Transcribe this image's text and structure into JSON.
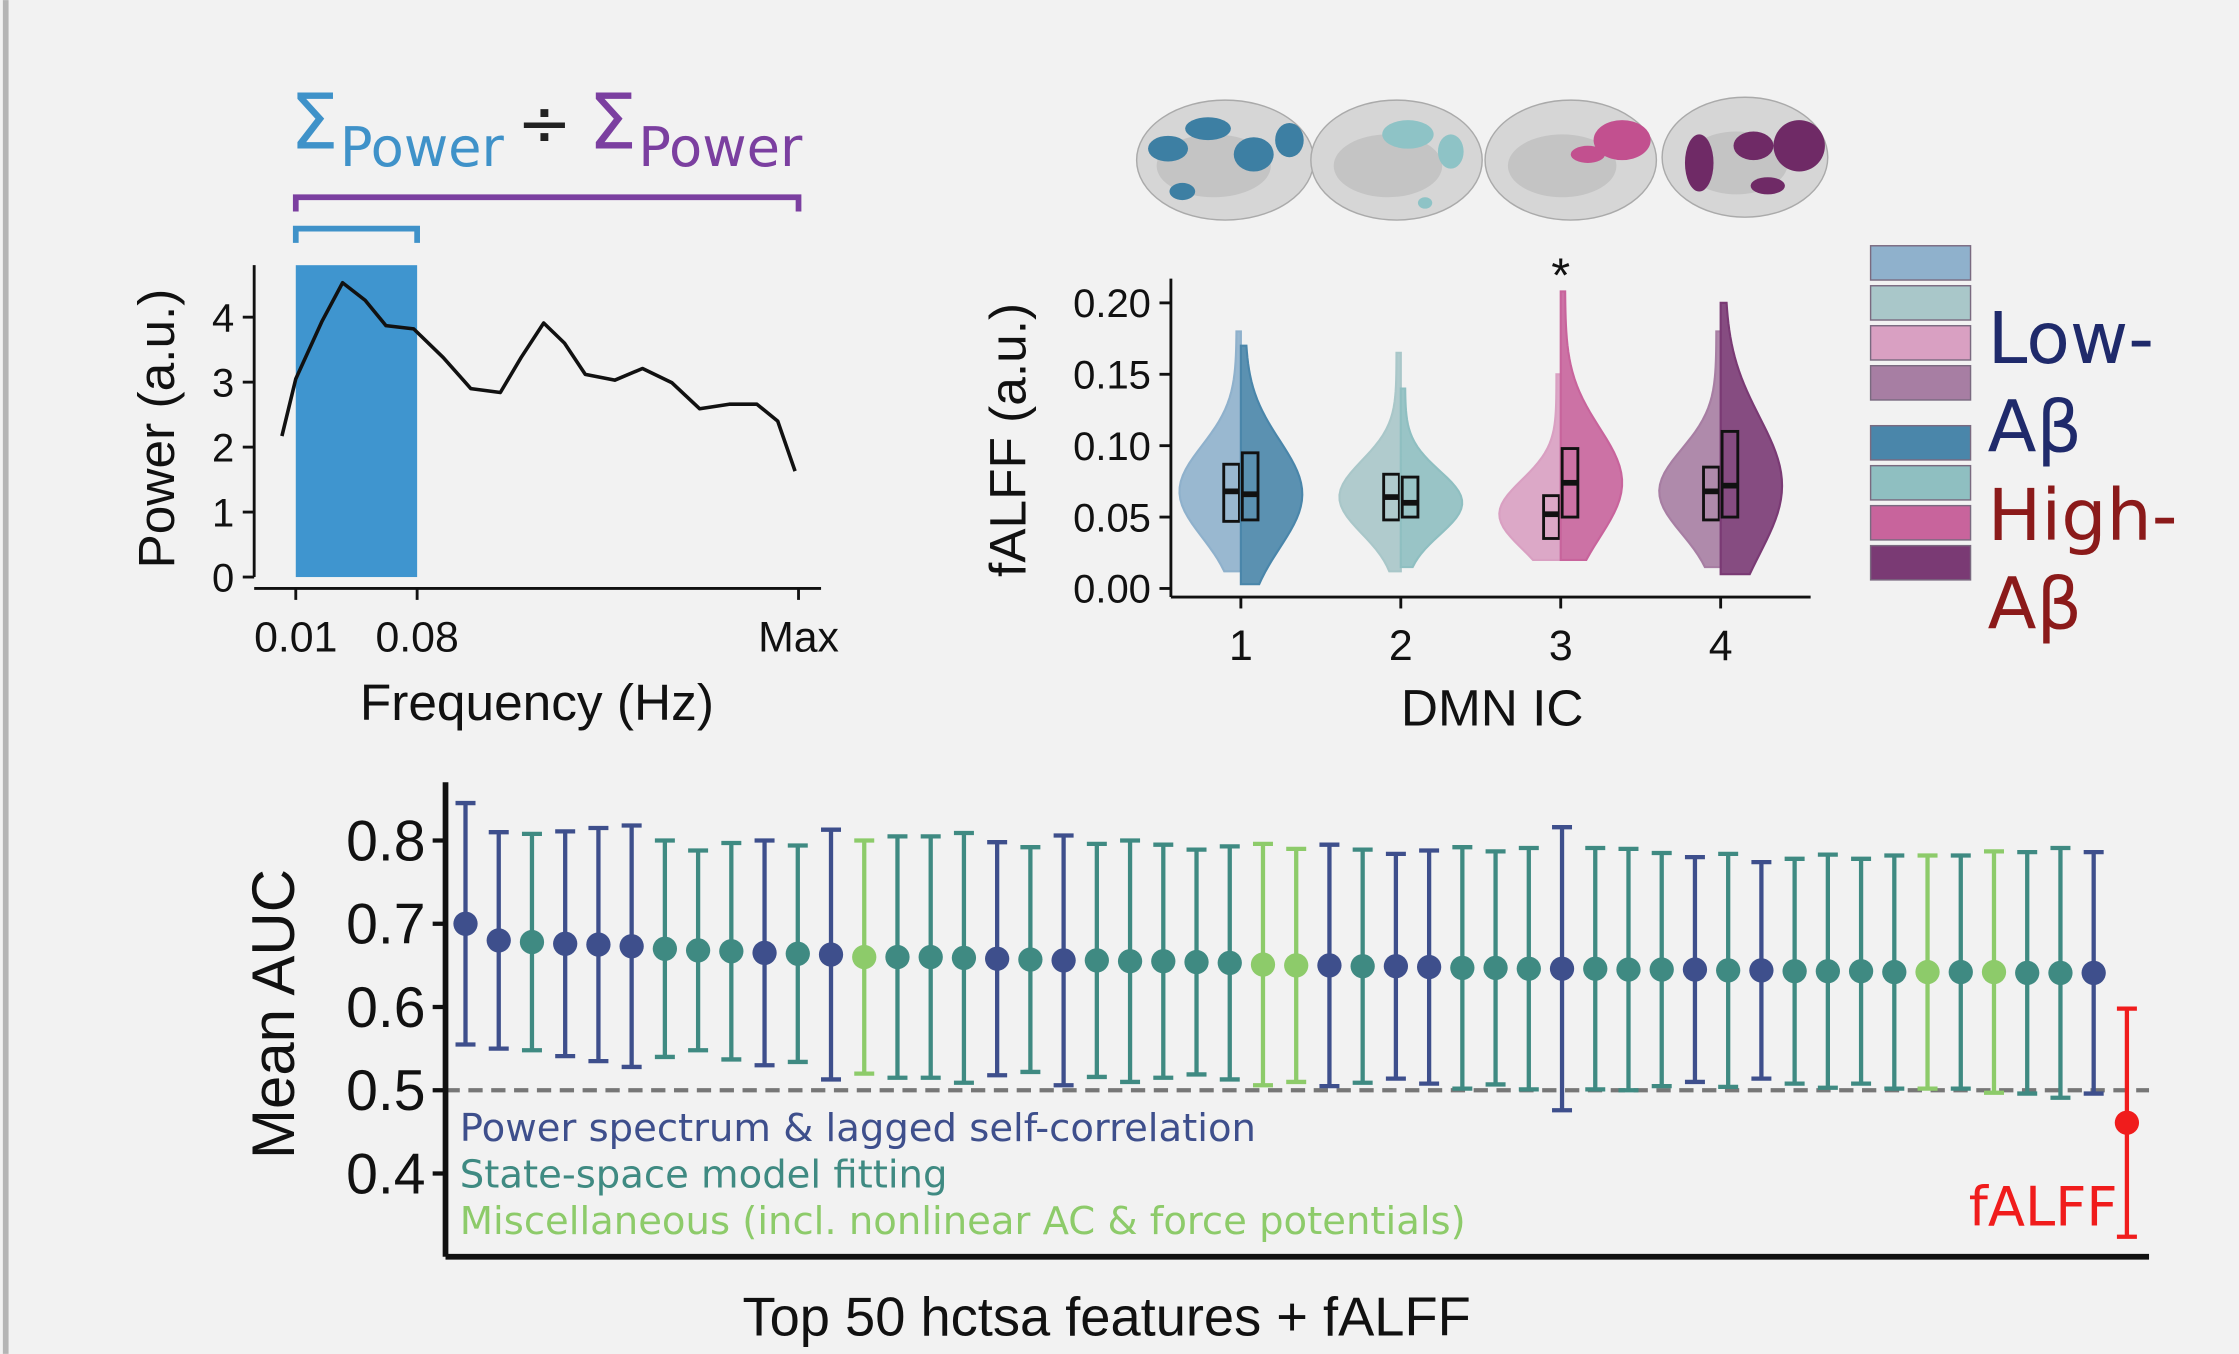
{
  "chart_data": [
    {
      "type": "line",
      "numerator_symbol": "Σ",
      "numerator_sub": "Power",
      "divide": "÷",
      "denominator_symbol": "Σ",
      "denominator_sub": "Power",
      "xlabel": "Frequency (Hz)",
      "ylabel": "Power (a.u.)",
      "xlim": [
        -0.014,
        0.313
      ],
      "xticks": [
        0.01,
        0.08,
        {
          "value": 0.3,
          "label": "Max"
        }
      ],
      "ylim": [
        0,
        4.8
      ],
      "yticks": [
        0,
        1,
        2,
        3,
        4
      ],
      "band": [
        0.01,
        0.08
      ],
      "band_color": "#3f95cf",
      "bracket_colors": [
        "#3f92c9",
        "#7b3fa0"
      ],
      "color": "#111111",
      "x": [
        0.002,
        0.01,
        0.025,
        0.037,
        0.05,
        0.062,
        0.078,
        0.095,
        0.111,
        0.128,
        0.14,
        0.153,
        0.165,
        0.177,
        0.194,
        0.21,
        0.227,
        0.243,
        0.26,
        0.276,
        0.288,
        0.298
      ],
      "values": [
        2.17,
        3.05,
        3.93,
        4.53,
        4.26,
        3.87,
        3.82,
        3.38,
        2.9,
        2.84,
        3.38,
        3.91,
        3.6,
        3.12,
        3.03,
        3.21,
        2.99,
        2.59,
        2.66,
        2.66,
        2.4,
        1.63
      ]
    },
    {
      "type": "violin",
      "xlabel": "DMN IC",
      "ylabel": "fALFF (a.u.)",
      "categories": [
        "1",
        "2",
        "3",
        "4"
      ],
      "ylim": [
        0,
        0.217
      ],
      "yticks": [
        {
          "value": 0,
          "label": "0.00"
        },
        {
          "value": 0.05,
          "label": "0.05"
        },
        {
          "value": 0.1,
          "label": "0.10"
        },
        {
          "value": 0.15,
          "label": "0.15"
        },
        {
          "value": 0.2,
          "label": "0.20"
        }
      ],
      "annotations": [
        {
          "text": "*",
          "category": "3"
        }
      ],
      "series": [
        {
          "name": "Low-Aβ",
          "label_color": "#1f2a6b",
          "colors": [
            "#8fb1cc",
            "#a9c7c9",
            "#d9a0c2",
            "#a77ea3"
          ],
          "min": [
            0.012,
            0.012,
            0.02,
            0.015
          ],
          "q1": [
            0.047,
            0.048,
            0.035,
            0.048
          ],
          "median": [
            0.068,
            0.064,
            0.052,
            0.068
          ],
          "q3": [
            0.087,
            0.08,
            0.065,
            0.085
          ],
          "max": [
            0.18,
            0.165,
            0.15,
            0.18
          ]
        },
        {
          "name": "High-Aβ",
          "label_color": "#8b1a1a",
          "colors": [
            "#4a86aa",
            "#8fbfc1",
            "#c8649c",
            "#7a3a74"
          ],
          "min": [
            0.003,
            0.015,
            0.02,
            0.01
          ],
          "q1": [
            0.048,
            0.05,
            0.05,
            0.05
          ],
          "median": [
            0.066,
            0.06,
            0.074,
            0.072
          ],
          "q3": [
            0.095,
            0.078,
            0.098,
            0.11
          ],
          "max": [
            0.17,
            0.14,
            0.208,
            0.2
          ]
        }
      ]
    },
    {
      "type": "errorbar",
      "xlabel": "Top 50 hctsa features + fALFF",
      "ylabel": "Mean AUC",
      "ylim": [
        0.3,
        0.87
      ],
      "yticks": [
        0.4,
        0.5,
        0.6,
        0.7,
        0.8
      ],
      "hline": 0.5,
      "legend": [
        {
          "name": "Power spectrum & lagged self-correlation",
          "color": "#3e4f8c"
        },
        {
          "name": "State-space model fitting",
          "color": "#3f8a82"
        },
        {
          "name": "Miscellaneous (incl. nonlinear AC & force potentials)",
          "color": "#8dcb6a"
        }
      ],
      "annotation": "fALFF",
      "annotation_color": "#f01c1c",
      "values": [
        0.7,
        0.68,
        0.678,
        0.676,
        0.675,
        0.673,
        0.67,
        0.668,
        0.667,
        0.665,
        0.664,
        0.663,
        0.66,
        0.66,
        0.66,
        0.659,
        0.658,
        0.657,
        0.656,
        0.656,
        0.655,
        0.655,
        0.654,
        0.653,
        0.651,
        0.65,
        0.65,
        0.649,
        0.649,
        0.648,
        0.647,
        0.647,
        0.646,
        0.646,
        0.646,
        0.645,
        0.645,
        0.645,
        0.644,
        0.644,
        0.643,
        0.643,
        0.643,
        0.642,
        0.642,
        0.642,
        0.642,
        0.641,
        0.641,
        0.641,
        0.461
      ],
      "errors": [
        0.145,
        0.13,
        0.13,
        0.135,
        0.14,
        0.145,
        0.13,
        0.12,
        0.13,
        0.135,
        0.13,
        0.15,
        0.14,
        0.145,
        0.145,
        0.15,
        0.14,
        0.135,
        0.15,
        0.14,
        0.145,
        0.14,
        0.135,
        0.14,
        0.145,
        0.14,
        0.145,
        0.14,
        0.135,
        0.14,
        0.145,
        0.14,
        0.145,
        0.17,
        0.145,
        0.145,
        0.14,
        0.135,
        0.14,
        0.13,
        0.135,
        0.14,
        0.135,
        0.14,
        0.14,
        0.14,
        0.145,
        0.145,
        0.15,
        0.145,
        0.137
      ],
      "colors": [
        "#3e4f8c",
        "#3e4f8c",
        "#3f8a82",
        "#3e4f8c",
        "#3e4f8c",
        "#3e4f8c",
        "#3f8a82",
        "#3f8a82",
        "#3f8a82",
        "#3e4f8c",
        "#3f8a82",
        "#3e4f8c",
        "#8dcb6a",
        "#3f8a82",
        "#3f8a82",
        "#3f8a82",
        "#3e4f8c",
        "#3f8a82",
        "#3e4f8c",
        "#3f8a82",
        "#3f8a82",
        "#3f8a82",
        "#3f8a82",
        "#3f8a82",
        "#8dcb6a",
        "#8dcb6a",
        "#3e4f8c",
        "#3f8a82",
        "#3e4f8c",
        "#3e4f8c",
        "#3f8a82",
        "#3f8a82",
        "#3f8a82",
        "#3e4f8c",
        "#3f8a82",
        "#3f8a82",
        "#3f8a82",
        "#3e4f8c",
        "#3f8a82",
        "#3e4f8c",
        "#3f8a82",
        "#3f8a82",
        "#3f8a82",
        "#3f8a82",
        "#8dcb6a",
        "#3f8a82",
        "#8dcb6a",
        "#3f8a82",
        "#3f8a82",
        "#3e4f8c",
        "#f01c1c"
      ]
    }
  ]
}
